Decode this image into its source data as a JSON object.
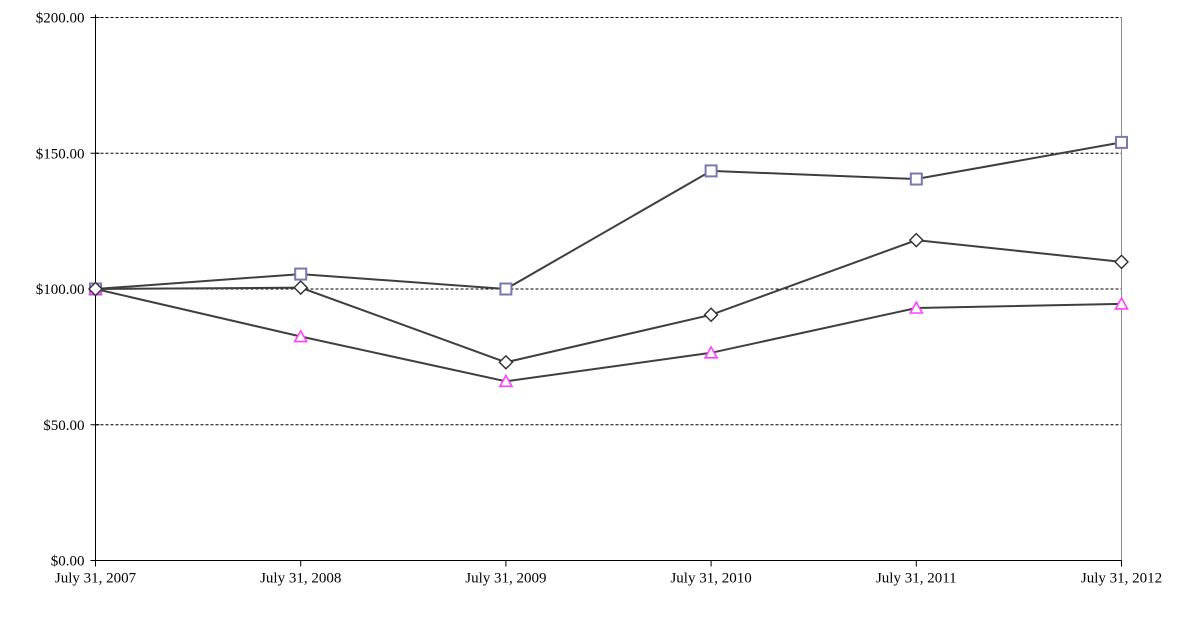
{
  "chart_data": {
    "type": "line",
    "title": "",
    "x_categories": [
      "July 31, 2007",
      "July 31, 2008",
      "July 31, 2009",
      "July 31, 2010",
      "July 31, 2011",
      "July 31, 2012"
    ],
    "series": [
      {
        "name": "square-series",
        "marker": "square",
        "marker_color": "#7878B4",
        "line_color": "#3F3F3F",
        "values": [
          100,
          105.5,
          100,
          143.5,
          140.5,
          154
        ]
      },
      {
        "name": "triangle-series",
        "marker": "triangle",
        "marker_color": "#FF40FF",
        "line_color": "#3F3F3F",
        "values": [
          100,
          82.5,
          66,
          76.5,
          93,
          94.5
        ]
      },
      {
        "name": "diamond-series",
        "marker": "diamond",
        "marker_color": "#2E2E2E",
        "line_color": "#3F3F3F",
        "values": [
          100,
          100.5,
          73,
          90.5,
          118,
          110
        ]
      }
    ],
    "y_axis": {
      "min": 0,
      "max": 200,
      "tick_step": 50,
      "tick_labels": [
        "$0.00",
        "$50.00",
        "$100.00",
        "$150.00",
        "$200.00"
      ]
    },
    "gridlines": {
      "horizontal": true,
      "style": "dashed",
      "color": "#000000"
    },
    "legend": "none",
    "colors": {
      "axis": "#000000",
      "right_border": "#8C8C8C",
      "text": "#000000",
      "marker_fill": "#FFFFFF",
      "background": "#FFFFFF"
    }
  }
}
